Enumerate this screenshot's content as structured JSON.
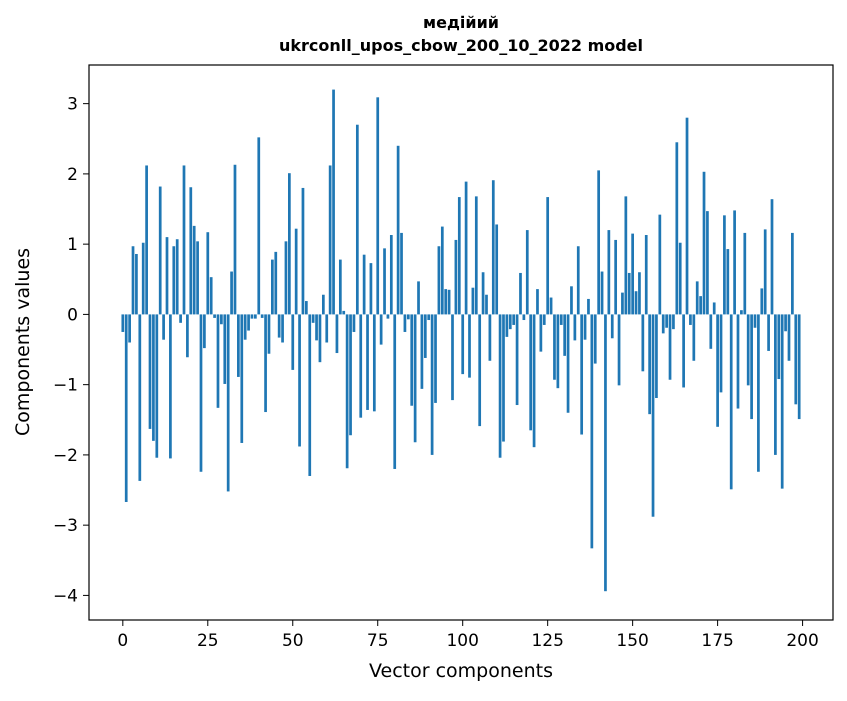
{
  "chart_data": {
    "type": "bar",
    "title": "медійий",
    "subtitle": "ukrconll_upos_cbow_200_10_2022 model",
    "xlabel": "Vector components",
    "ylabel": "Components values",
    "xlim": [
      -9.95,
      208.95
    ],
    "ylim": [
      -4.35,
      3.55
    ],
    "x_ticks": [
      0,
      25,
      50,
      75,
      100,
      125,
      150,
      175,
      200
    ],
    "y_ticks": [
      -4,
      -3,
      -2,
      -1,
      0,
      1,
      2,
      3
    ],
    "y_tick_labels": [
      "−4",
      "−3",
      "−2",
      "−1",
      "0",
      "1",
      "2",
      "3"
    ],
    "grid": false,
    "bar_color": "#1f77b4",
    "x": [
      0,
      1,
      2,
      3,
      4,
      5,
      6,
      7,
      8,
      9,
      10,
      11,
      12,
      13,
      14,
      15,
      16,
      17,
      18,
      19,
      20,
      21,
      22,
      23,
      24,
      25,
      26,
      27,
      28,
      29,
      30,
      31,
      32,
      33,
      34,
      35,
      36,
      37,
      38,
      39,
      40,
      41,
      42,
      43,
      44,
      45,
      46,
      47,
      48,
      49,
      50,
      51,
      52,
      53,
      54,
      55,
      56,
      57,
      58,
      59,
      60,
      61,
      62,
      63,
      64,
      65,
      66,
      67,
      68,
      69,
      70,
      71,
      72,
      73,
      74,
      75,
      76,
      77,
      78,
      79,
      80,
      81,
      82,
      83,
      84,
      85,
      86,
      87,
      88,
      89,
      90,
      91,
      92,
      93,
      94,
      95,
      96,
      97,
      98,
      99,
      100,
      101,
      102,
      103,
      104,
      105,
      106,
      107,
      108,
      109,
      110,
      111,
      112,
      113,
      114,
      115,
      116,
      117,
      118,
      119,
      120,
      121,
      122,
      123,
      124,
      125,
      126,
      127,
      128,
      129,
      130,
      131,
      132,
      133,
      134,
      135,
      136,
      137,
      138,
      139,
      140,
      141,
      142,
      143,
      144,
      145,
      146,
      147,
      148,
      149,
      150,
      151,
      152,
      153,
      154,
      155,
      156,
      157,
      158,
      159,
      160,
      161,
      162,
      163,
      164,
      165,
      166,
      167,
      168,
      169,
      170,
      171,
      172,
      173,
      174,
      175,
      176,
      177,
      178,
      179,
      180,
      181,
      182,
      183,
      184,
      185,
      186,
      187,
      188,
      189,
      190,
      191,
      192,
      193,
      194,
      195,
      196,
      197,
      198,
      199
    ],
    "values": [
      -0.25,
      -2.67,
      -0.4,
      0.97,
      0.86,
      -2.37,
      1.02,
      2.12,
      -1.63,
      -1.8,
      -2.04,
      1.82,
      -0.36,
      1.1,
      -2.05,
      0.97,
      1.07,
      -0.12,
      2.12,
      -0.61,
      1.81,
      1.26,
      1.04,
      -2.24,
      -0.48,
      1.17,
      0.53,
      -0.05,
      -1.33,
      -0.14,
      -0.99,
      -2.52,
      0.61,
      2.13,
      -0.89,
      -1.83,
      -0.36,
      -0.23,
      -0.06,
      -0.06,
      2.52,
      -0.05,
      -1.39,
      -0.56,
      0.78,
      0.89,
      -0.33,
      -0.4,
      1.04,
      2.01,
      -0.79,
      1.22,
      -1.88,
      1.8,
      0.19,
      -2.3,
      -0.12,
      -0.37,
      -0.68,
      0.28,
      -0.4,
      2.12,
      3.2,
      -0.55,
      0.78,
      0.05,
      -2.19,
      -1.72,
      -0.25,
      2.7,
      -1.47,
      0.85,
      -1.36,
      0.73,
      -1.38,
      3.09,
      -0.43,
      0.94,
      -0.06,
      1.13,
      -2.2,
      2.4,
      1.16,
      -0.25,
      -0.07,
      -1.3,
      -1.82,
      0.47,
      -1.06,
      -0.62,
      -0.08,
      -2.0,
      -1.26,
      0.97,
      1.25,
      0.36,
      0.35,
      -1.22,
      1.06,
      1.67,
      -0.85,
      1.89,
      -0.9,
      0.38,
      1.68,
      -1.59,
      0.6,
      0.28,
      -0.66,
      1.91,
      1.28,
      -2.04,
      -1.81,
      -0.32,
      -0.21,
      -0.15,
      -1.29,
      0.59,
      -0.08,
      1.2,
      -1.65,
      -1.89,
      0.36,
      -0.53,
      -0.15,
      1.67,
      0.24,
      -0.93,
      -1.05,
      -0.15,
      -0.59,
      -1.4,
      0.4,
      -0.37,
      0.97,
      -1.71,
      -0.36,
      0.22,
      -3.33,
      -0.7,
      2.05,
      0.61,
      -3.94,
      1.2,
      -0.34,
      1.06,
      -1.01,
      0.31,
      1.68,
      0.59,
      1.15,
      0.33,
      0.6,
      -0.81,
      1.13,
      -1.42,
      -2.88,
      -1.19,
      1.42,
      -0.27,
      -0.19,
      -0.93,
      -0.21,
      2.45,
      1.02,
      -1.04,
      2.8,
      -0.15,
      -0.66,
      0.47,
      0.26,
      2.03,
      1.47,
      -0.49,
      0.17,
      -1.6,
      -1.11,
      1.41,
      0.93,
      -2.49,
      1.48,
      -1.34,
      0.06,
      1.16,
      -1.01,
      -1.49,
      -0.19,
      -2.24,
      0.37,
      1.21,
      -0.52,
      1.64,
      -2.0,
      -0.92,
      -2.48,
      -0.24,
      -0.66,
      1.16,
      -1.28,
      -1.49
    ]
  }
}
